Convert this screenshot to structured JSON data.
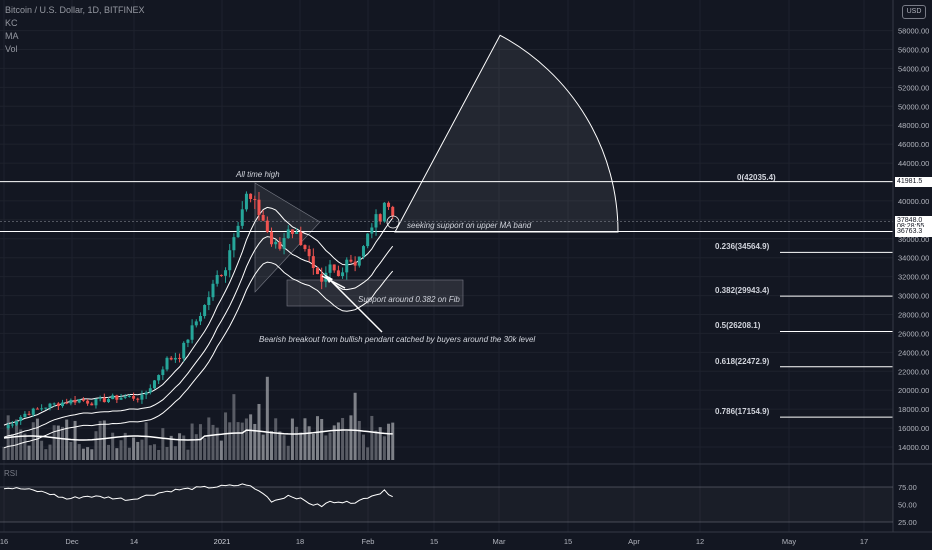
{
  "header": {
    "title": "Bitcoin / U.S. Dollar, 1D, BITFINEX",
    "indicators": [
      "KC",
      "MA",
      "Vol"
    ],
    "currency": "USD"
  },
  "annotations": {
    "ath": "All time high",
    "seeking": "seeking support on upper MA band",
    "support": "Support around 0.382 on Fib",
    "breakout": "Bearish breakout from bullish pendant catched by buyers around the 30k level"
  },
  "fib_levels": [
    {
      "label": "0(42035.4)",
      "price": 42035.4
    },
    {
      "label": "0.236(34564.9)",
      "price": 34564.9
    },
    {
      "label": "0.382(29943.4)",
      "price": 29943.4
    },
    {
      "label": "0.5(26208.1)",
      "price": 26208.1
    },
    {
      "label": "0.618(22472.9)",
      "price": 22472.9
    },
    {
      "label": "0.786(17154.9)",
      "price": 17154.9
    }
  ],
  "price_tags": [
    {
      "text": "41981.5",
      "price": 41981.5,
      "bg": "#ffffff",
      "fg": "#131722"
    },
    {
      "text": "37848.0",
      "price": 37848.0,
      "bg": "#ffffff",
      "fg": "#131722"
    },
    {
      "text": "08:28:55",
      "price": 37250,
      "bg": "#ffffff",
      "fg": "#131722"
    },
    {
      "text": "36763.3",
      "price": 36763.3,
      "bg": "#ffffff",
      "fg": "#131722"
    }
  ],
  "rsi_panel": {
    "label": "RSI",
    "ticks": [
      "75.00",
      "50.00",
      "25.00"
    ]
  },
  "colors": {
    "background": "#131722",
    "up": "#26a69a",
    "down": "#ef5350",
    "line": "#ffffff",
    "grid": "#1e222d"
  },
  "chart_data": {
    "type": "candlestick",
    "symbol": "Bitcoin / U.S. Dollar",
    "timeframe": "1D",
    "exchange": "BITFINEX",
    "y_axis": {
      "ticks": [
        14000,
        16000,
        18000,
        20000,
        22000,
        24000,
        26000,
        28000,
        30000,
        32000,
        34000,
        36000,
        38000,
        40000,
        42000,
        44000,
        46000,
        48000,
        50000,
        52000,
        54000,
        56000,
        58000
      ],
      "range": [
        12500,
        60000
      ]
    },
    "x_axis": {
      "ticks": [
        "16",
        "Dec",
        "14",
        "2021",
        "18",
        "Feb",
        "15",
        "Mar",
        "15",
        "Apr",
        "12",
        "May",
        "17"
      ]
    },
    "price_path": [
      [
        0,
        16000
      ],
      [
        5,
        17500
      ],
      [
        10,
        18300
      ],
      [
        14,
        18700
      ],
      [
        18,
        19000
      ],
      [
        21,
        18700
      ],
      [
        25,
        19100
      ],
      [
        29,
        19300
      ],
      [
        33,
        19200
      ],
      [
        36,
        21000
      ],
      [
        39,
        23200
      ],
      [
        42,
        23700
      ],
      [
        45,
        26500
      ],
      [
        48,
        28900
      ],
      [
        51,
        32000
      ],
      [
        53,
        33000
      ],
      [
        55,
        36700
      ],
      [
        58,
        40500
      ],
      [
        60,
        39500
      ],
      [
        62,
        38000
      ],
      [
        64,
        35500
      ],
      [
        66,
        35000
      ],
      [
        68,
        37300
      ],
      [
        70,
        36400
      ],
      [
        72,
        35200
      ],
      [
        74,
        32500
      ],
      [
        76,
        31000
      ],
      [
        78,
        33000
      ],
      [
        80,
        32000
      ],
      [
        82,
        34000
      ],
      [
        84,
        33500
      ],
      [
        86,
        35000
      ],
      [
        88,
        37500
      ],
      [
        90,
        38500
      ],
      [
        91,
        40000
      ],
      [
        93,
        38500
      ]
    ],
    "rsi_path": [
      [
        0,
        74
      ],
      [
        5,
        72
      ],
      [
        10,
        67
      ],
      [
        15,
        58
      ],
      [
        20,
        62
      ],
      [
        25,
        60
      ],
      [
        30,
        57
      ],
      [
        35,
        64
      ],
      [
        40,
        70
      ],
      [
        45,
        73
      ],
      [
        50,
        75
      ],
      [
        55,
        77
      ],
      [
        58,
        79
      ],
      [
        60,
        72
      ],
      [
        62,
        66
      ],
      [
        64,
        55
      ],
      [
        66,
        58
      ],
      [
        68,
        63
      ],
      [
        70,
        60
      ],
      [
        72,
        55
      ],
      [
        74,
        50
      ],
      [
        76,
        48
      ],
      [
        78,
        54
      ],
      [
        80,
        52
      ],
      [
        82,
        56
      ],
      [
        84,
        51
      ],
      [
        86,
        58
      ],
      [
        88,
        64
      ],
      [
        90,
        66
      ],
      [
        91,
        69
      ],
      [
        93,
        63
      ]
    ]
  }
}
